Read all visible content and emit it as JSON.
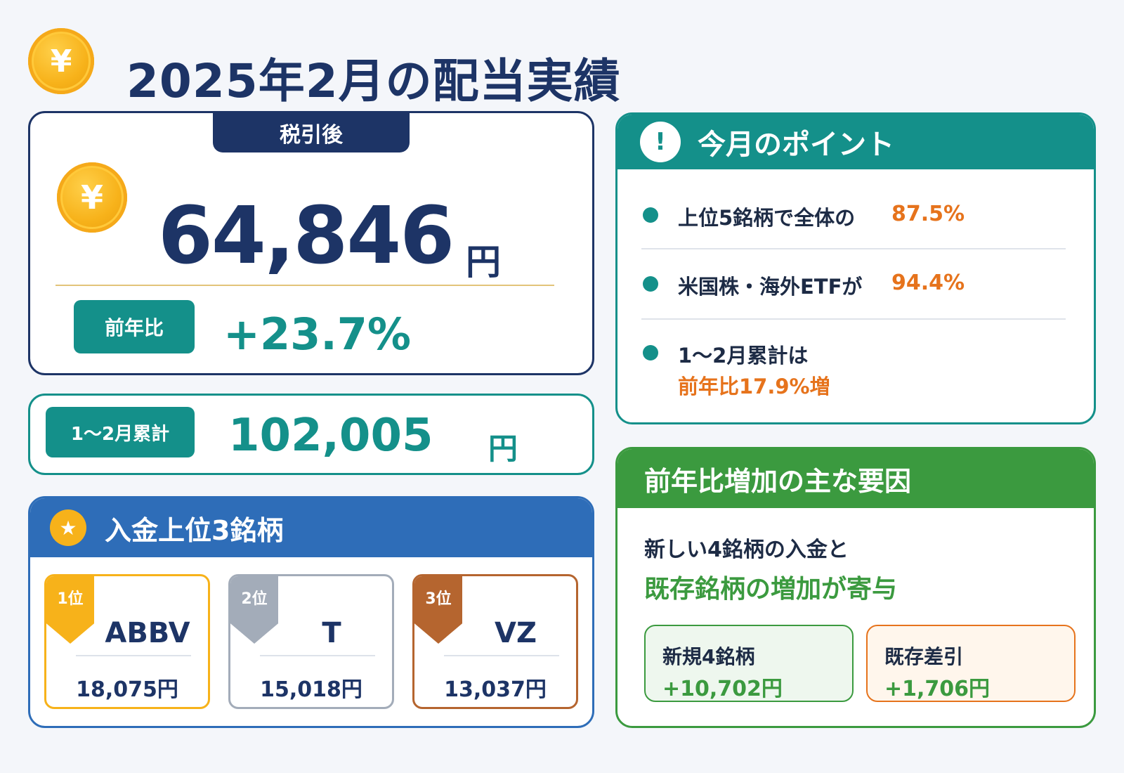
{
  "header": {
    "title": "2025年2月の配当実績",
    "coin_symbol": "¥"
  },
  "main": {
    "tab_label": "税引後",
    "amount": "64,846",
    "unit": "円",
    "yoy_label": "前年比",
    "yoy_value": "+23.7%"
  },
  "cumulative": {
    "label": "1〜2月累計",
    "amount": "102,005",
    "unit": "円"
  },
  "top3": {
    "title": "入金上位3銘柄",
    "star": "★",
    "items": [
      {
        "rank": "1位",
        "ticker": "ABBV",
        "amount": "18,075円",
        "color": "#f7b21a"
      },
      {
        "rank": "2位",
        "ticker": "T",
        "amount": "15,018円",
        "color": "#a3acb9"
      },
      {
        "rank": "3位",
        "ticker": "VZ",
        "amount": "13,037円",
        "color": "#b5652f"
      }
    ]
  },
  "points": {
    "title": "今月のポイント",
    "icon": "!",
    "items": [
      {
        "label": "上位5銘柄で全体の",
        "value": "87.5%"
      },
      {
        "label": "米国株・海外ETFが",
        "value": "94.4%"
      },
      {
        "label": "1〜2月累計は",
        "value": "前年比17.9%増"
      }
    ]
  },
  "factors": {
    "title": "前年比増加の主な要因",
    "line1": "新しい4銘柄の入金と",
    "line2": "既存銘柄の増加が寄与",
    "new": {
      "label": "新規4銘柄",
      "value": "+10,702円"
    },
    "existing": {
      "label": "既存差引",
      "value": "+1,706円"
    }
  },
  "colors": {
    "navy": "#1d3466",
    "teal": "#14908a",
    "blue": "#2e6db8",
    "green": "#3b9a3f",
    "orange": "#e6731c",
    "gold": "#f7b21a"
  }
}
